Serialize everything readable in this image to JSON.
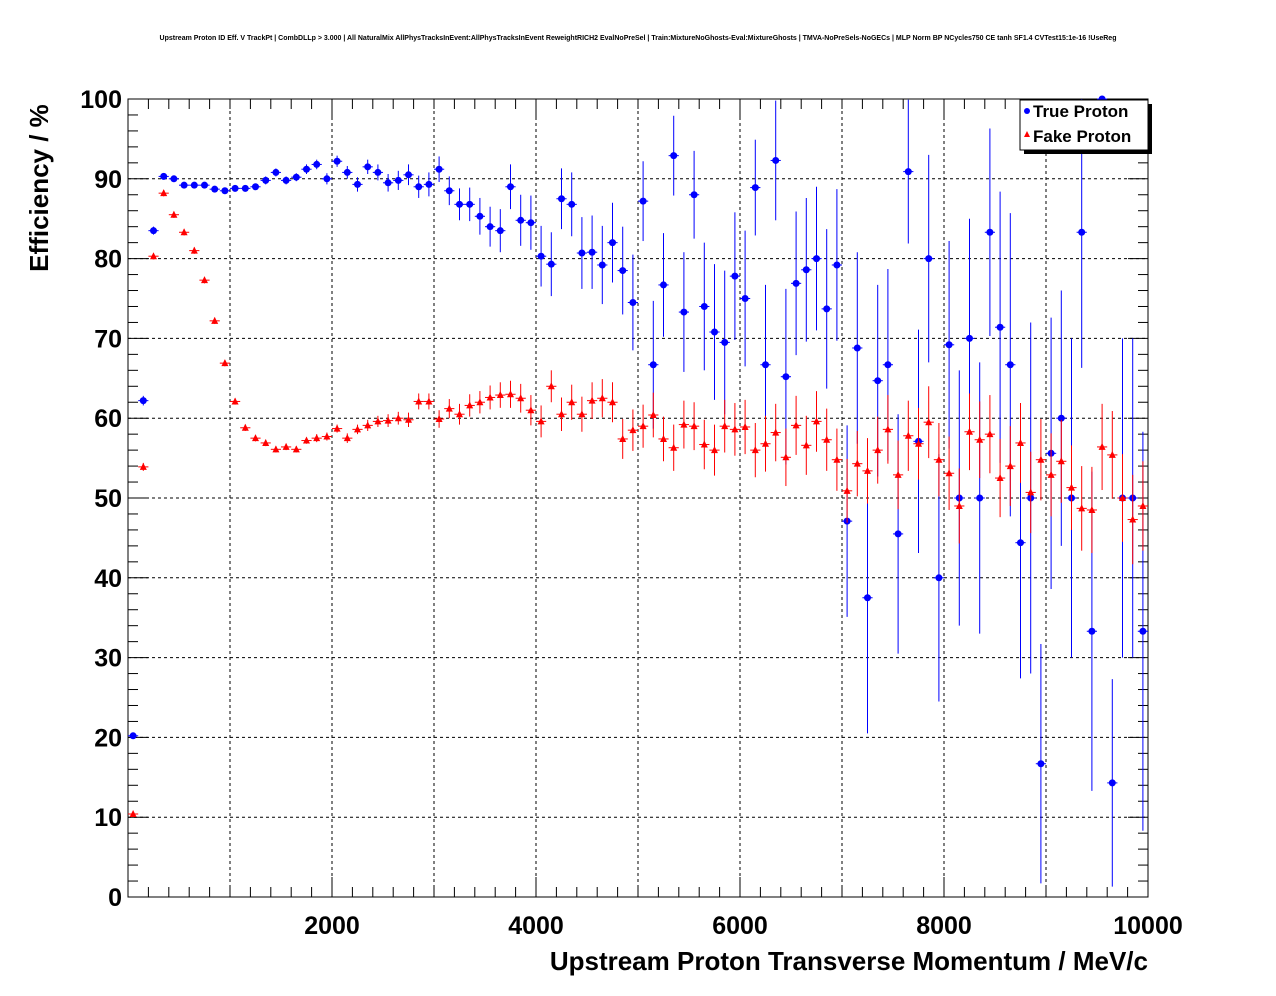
{
  "chart_data": {
    "type": "scatter",
    "title": "Upstream Proton ID Eff. V TrackPt | CombDLLp > 3.000 | All NaturalMix AllPhysTracksInEvent:AllPhysTracksInEvent ReweightRICH2 EvalNoPreSel | Train:MixtureNoGhosts-Eval:MixtureGhosts | TMVA-NoPreSels-NoGECs | MLP Norm BP NCycles750 CE tanh SF1.4 CVTest15:1e-16 !UseReg",
    "xlabel": "Upstream Proton Transverse Momentum / MeV/c",
    "ylabel": "Efficiency / %",
    "xlim": [
      0,
      10000
    ],
    "ylim": [
      0,
      100
    ],
    "x_ticks": [
      "2000",
      "4000",
      "6000",
      "8000",
      "10000"
    ],
    "y_ticks": [
      "0",
      "10",
      "20",
      "30",
      "40",
      "50",
      "60",
      "70",
      "80",
      "90",
      "100"
    ],
    "bin_width": 100,
    "grid": true,
    "legend_position": "top-right",
    "series": [
      {
        "name": "True Proton",
        "color": "#0000ff",
        "marker": "circle",
        "x": [
          50,
          150,
          250,
          350,
          450,
          550,
          650,
          750,
          850,
          950,
          1050,
          1150,
          1250,
          1350,
          1450,
          1550,
          1650,
          1750,
          1850,
          1950,
          2050,
          2150,
          2250,
          2350,
          2450,
          2550,
          2650,
          2750,
          2850,
          2950,
          3050,
          3150,
          3250,
          3350,
          3450,
          3550,
          3650,
          3750,
          3850,
          3950,
          4050,
          4150,
          4250,
          4350,
          4450,
          4550,
          4650,
          4750,
          4850,
          4950,
          5050,
          5150,
          5250,
          5350,
          5450,
          5550,
          5650,
          5750,
          5850,
          5950,
          6050,
          6150,
          6250,
          6350,
          6450,
          6550,
          6650,
          6750,
          6850,
          6950,
          7050,
          7150,
          7250,
          7350,
          7450,
          7550,
          7650,
          7750,
          7850,
          7950,
          8050,
          8150,
          8250,
          8350,
          8450,
          8550,
          8650,
          8750,
          8850,
          8950,
          9050,
          9150,
          9250,
          9350,
          9450,
          9550,
          9650,
          9750,
          9850,
          9950
        ],
        "y": [
          20.2,
          62.2,
          83.5,
          90.3,
          90.0,
          89.2,
          89.2,
          89.2,
          88.7,
          88.5,
          88.8,
          88.8,
          89.0,
          89.8,
          90.8,
          89.8,
          90.2,
          91.2,
          91.8,
          90.0,
          92.2,
          90.8,
          89.3,
          91.5,
          90.8,
          89.5,
          89.8,
          90.5,
          89.0,
          89.3,
          91.2,
          88.5,
          86.8,
          86.8,
          85.3,
          84.0,
          83.5,
          89.0,
          84.8,
          84.5,
          80.3,
          79.3,
          87.5,
          86.8,
          80.7,
          80.8,
          79.2,
          82.0,
          78.5,
          74.5,
          87.2,
          66.7,
          76.7,
          92.9,
          73.3,
          88.0,
          74.0,
          70.8,
          69.5,
          77.8,
          75.0,
          88.9,
          66.7,
          92.3,
          65.2,
          76.9,
          78.6,
          80.0,
          73.7,
          79.2,
          47.1,
          68.8,
          37.5,
          64.7,
          66.7,
          45.5,
          90.9,
          57.1,
          80.0,
          40.0,
          69.2,
          50.0,
          70.0,
          50.0,
          83.3,
          71.4,
          66.7,
          44.4,
          50.0,
          16.7,
          55.6,
          60.0,
          50.0,
          83.3,
          33.3,
          100.0,
          14.3,
          50.0,
          50.0,
          33.3
        ],
        "yerr": [
          0.4,
          0.6,
          0.5,
          0.4,
          0.4,
          0.4,
          0.4,
          0.4,
          0.4,
          0.4,
          0.4,
          0.4,
          0.4,
          0.5,
          0.5,
          0.5,
          0.5,
          0.6,
          0.6,
          0.7,
          0.7,
          0.8,
          0.9,
          0.9,
          1.0,
          1.1,
          1.2,
          1.3,
          1.4,
          1.5,
          1.6,
          1.8,
          2.0,
          2.1,
          2.3,
          2.5,
          2.7,
          2.8,
          3.2,
          3.4,
          3.8,
          4.0,
          3.8,
          4.0,
          4.5,
          4.6,
          4.9,
          5.0,
          5.5,
          6.0,
          5.0,
          8.0,
          6.5,
          5.0,
          7.5,
          5.5,
          8.0,
          8.5,
          9.0,
          8.0,
          8.5,
          6.0,
          10.0,
          7.5,
          11.0,
          9.0,
          9.0,
          9.0,
          10.0,
          9.5,
          12.0,
          12.0,
          17.0,
          12.0,
          12.0,
          15.0,
          9.0,
          14.0,
          13.0,
          15.5,
          13.0,
          16.0,
          15.0,
          17.0,
          13.0,
          17.0,
          19.0,
          17.0,
          22.0,
          15.0,
          17.0,
          16.0,
          20.0,
          17.0,
          20.0,
          0.0,
          13.0,
          20.0,
          20.0,
          25.0
        ]
      },
      {
        "name": "Fake Proton",
        "color": "#ff0000",
        "marker": "triangle",
        "x": [
          50,
          150,
          250,
          350,
          450,
          550,
          650,
          750,
          850,
          950,
          1050,
          1150,
          1250,
          1350,
          1450,
          1550,
          1650,
          1750,
          1850,
          1950,
          2050,
          2150,
          2250,
          2350,
          2450,
          2550,
          2650,
          2750,
          2850,
          2950,
          3050,
          3150,
          3250,
          3350,
          3450,
          3550,
          3650,
          3750,
          3850,
          3950,
          4050,
          4150,
          4250,
          4350,
          4450,
          4550,
          4650,
          4750,
          4850,
          4950,
          5050,
          5150,
          5250,
          5350,
          5450,
          5550,
          5650,
          5750,
          5850,
          5950,
          6050,
          6150,
          6250,
          6350,
          6450,
          6550,
          6650,
          6750,
          6850,
          6950,
          7050,
          7150,
          7250,
          7350,
          7450,
          7550,
          7650,
          7750,
          7850,
          7950,
          8050,
          8150,
          8250,
          8350,
          8450,
          8550,
          8650,
          8750,
          8850,
          8950,
          9050,
          9150,
          9250,
          9350,
          9450,
          9550,
          9650,
          9750,
          9850,
          9950
        ],
        "y": [
          10.4,
          53.9,
          80.3,
          88.2,
          85.5,
          83.3,
          81.0,
          77.3,
          72.2,
          66.9,
          62.1,
          58.8,
          57.5,
          56.9,
          56.1,
          56.4,
          56.1,
          57.2,
          57.5,
          57.7,
          58.7,
          57.5,
          58.6,
          59.1,
          59.6,
          59.7,
          60.0,
          59.8,
          62.1,
          62.1,
          59.9,
          61.2,
          60.5,
          61.6,
          62.0,
          62.6,
          62.9,
          63.0,
          62.5,
          61.0,
          59.6,
          64.0,
          60.5,
          62.0,
          60.5,
          62.2,
          62.5,
          62.0,
          57.4,
          58.5,
          59.0,
          60.4,
          57.4,
          56.3,
          59.2,
          59.0,
          56.7,
          56.0,
          59.0,
          58.6,
          58.9,
          56.0,
          56.8,
          58.2,
          55.1,
          59.1,
          56.6,
          59.6,
          57.3,
          54.8,
          50.9,
          54.3,
          53.4,
          56.0,
          58.6,
          52.9,
          57.8,
          56.8,
          59.5,
          54.8,
          53.1,
          49.0,
          58.3,
          57.3,
          58.0,
          52.5,
          54.0,
          56.9,
          50.7,
          54.8,
          52.9,
          54.6,
          51.3,
          48.7,
          48.5,
          56.4,
          55.4,
          50.0,
          47.3,
          49.0
        ],
        "yerr": [
          0.3,
          0.5,
          0.4,
          0.4,
          0.4,
          0.4,
          0.4,
          0.4,
          0.4,
          0.4,
          0.4,
          0.4,
          0.4,
          0.4,
          0.4,
          0.4,
          0.4,
          0.4,
          0.5,
          0.5,
          0.5,
          0.6,
          0.6,
          0.7,
          0.7,
          0.8,
          0.8,
          0.9,
          1.0,
          1.0,
          1.1,
          1.2,
          1.3,
          1.4,
          1.4,
          1.5,
          1.6,
          1.7,
          1.8,
          1.9,
          2.0,
          2.0,
          2.1,
          2.2,
          2.2,
          2.3,
          2.4,
          2.5,
          2.5,
          2.6,
          2.7,
          2.8,
          2.8,
          2.9,
          3.0,
          3.0,
          3.1,
          3.2,
          3.3,
          3.3,
          3.4,
          3.4,
          3.5,
          3.6,
          3.6,
          3.7,
          3.7,
          3.8,
          3.9,
          3.9,
          4.0,
          4.1,
          4.1,
          4.2,
          4.3,
          4.3,
          4.4,
          4.5,
          4.5,
          4.6,
          4.6,
          4.7,
          4.8,
          4.8,
          4.9,
          4.9,
          5.0,
          5.0,
          5.1,
          5.1,
          5.2,
          5.2,
          5.3,
          5.3,
          5.4,
          5.4,
          5.5,
          5.5,
          5.6,
          5.6
        ]
      }
    ]
  }
}
